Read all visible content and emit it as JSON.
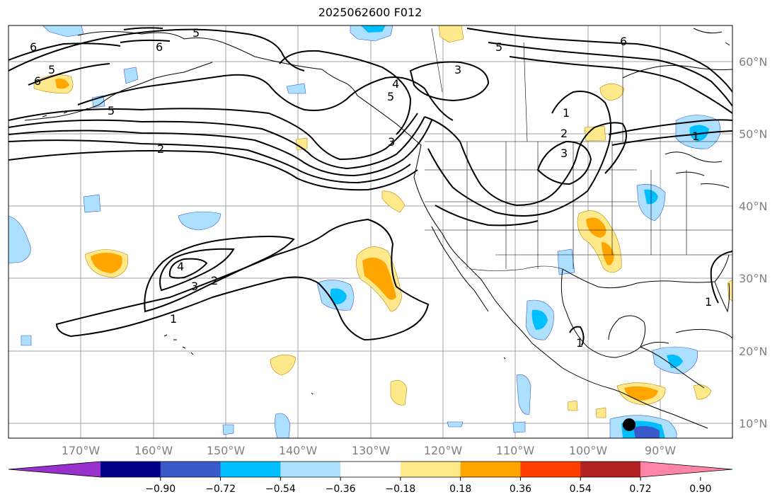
{
  "title": "2025062600 F012",
  "map": {
    "lat_labels": [
      "60°N",
      "50°N",
      "40°N",
      "30°N",
      "20°N",
      "10°N"
    ],
    "lon_labels": [
      "170°W",
      "160°W",
      "150°W",
      "140°W",
      "130°W",
      "120°W",
      "110°W",
      "100°W",
      "90°W"
    ],
    "contour_labels": [
      "6",
      "5",
      "6",
      "5",
      "6",
      "5",
      "6",
      "5",
      "3",
      "4",
      "5",
      "3",
      "2",
      "1",
      "2",
      "3",
      "1",
      "4",
      "3",
      "2",
      "1",
      "1",
      "1"
    ]
  },
  "colorbar": {
    "tick_labels": [
      "−0.90",
      "−0.72",
      "−0.54",
      "−0.36",
      "−0.18",
      "0.18",
      "0.36",
      "0.54",
      "0.72",
      "0.90"
    ],
    "colors": [
      "#9932CC",
      "#00008B",
      "#3A5BC7",
      "#00BFFF",
      "#ADDFFF",
      "#FFFFFF",
      "#FFE98A",
      "#FFA500",
      "#FF3D00",
      "#B22222",
      "#FF85A8"
    ]
  },
  "colors": {
    "grid": "#A0A0A0",
    "coast": "#000000",
    "contour": "#000000"
  }
}
